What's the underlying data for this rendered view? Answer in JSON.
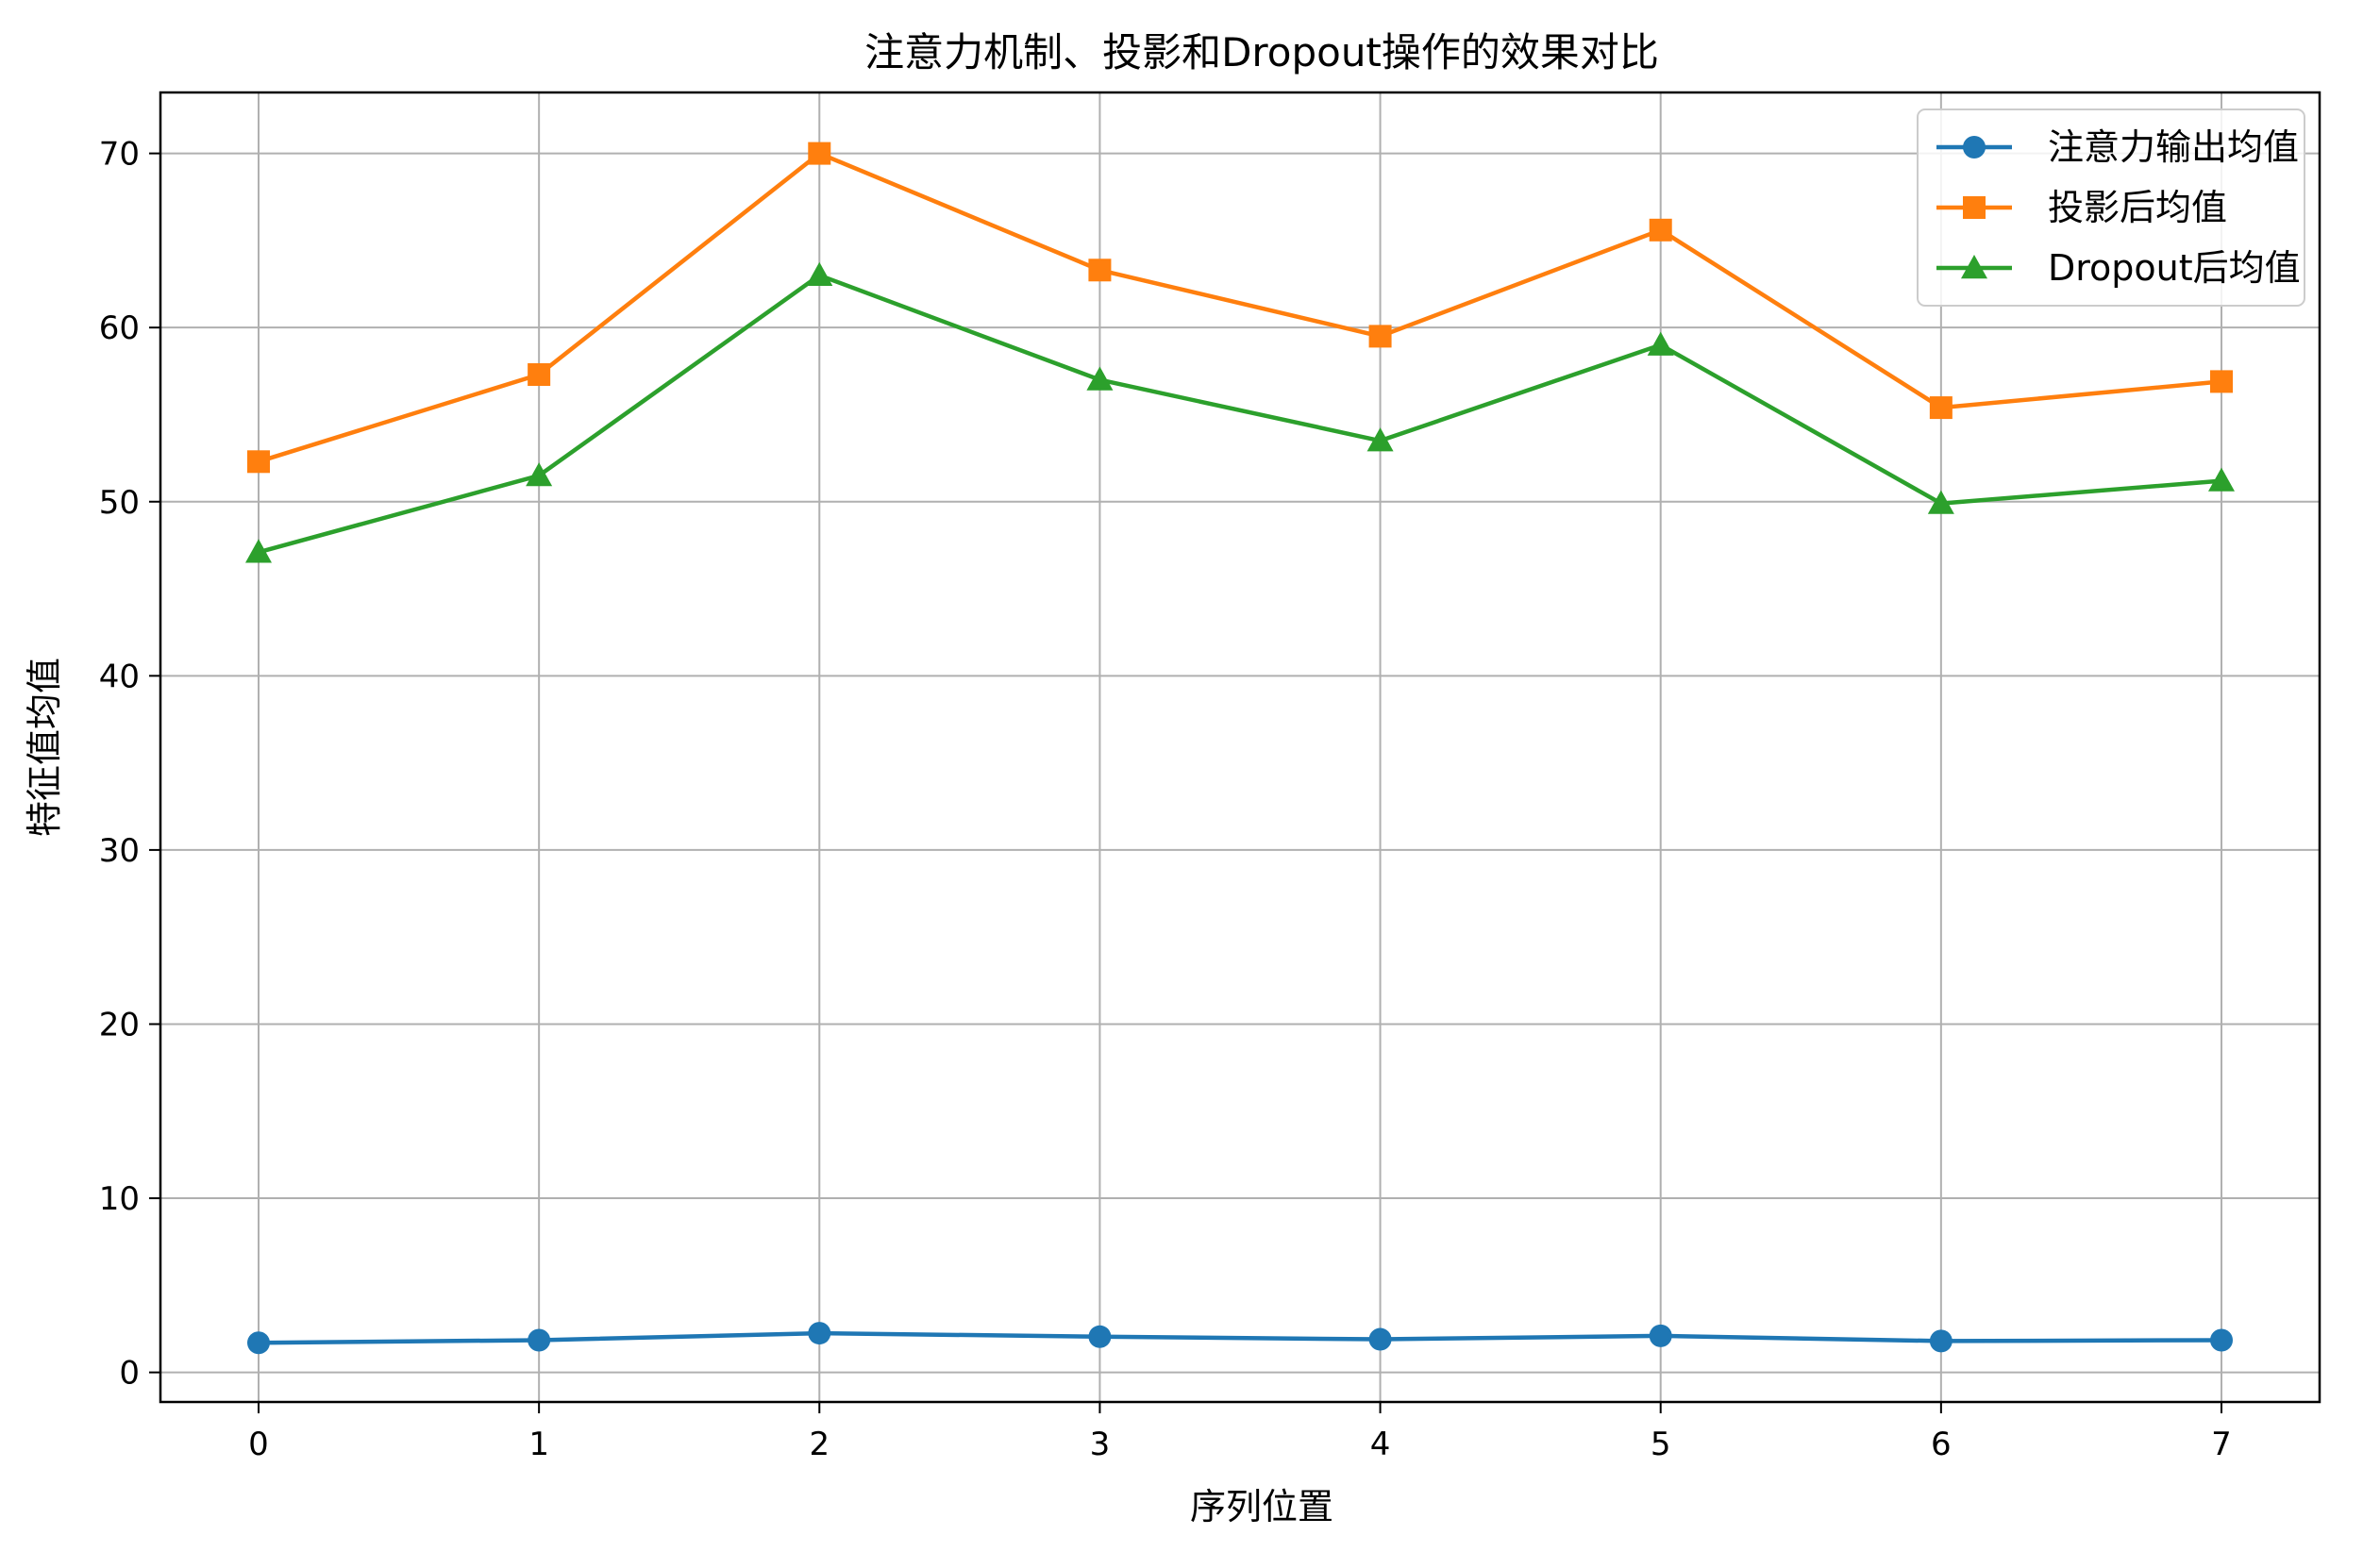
{
  "chart_data": {
    "type": "line",
    "title": "注意力机制、投影和Dropout操作的效果对比",
    "xlabel": "序列位置",
    "ylabel": "特征值均值",
    "x": [
      0,
      1,
      2,
      3,
      4,
      5,
      6,
      7
    ],
    "xlim": [
      -0.35,
      7.35
    ],
    "ylim": [
      -1.7,
      73.5
    ],
    "xticks": [
      "0",
      "1",
      "2",
      "3",
      "4",
      "5",
      "6",
      "7"
    ],
    "yticks": [
      "0",
      "10",
      "20",
      "30",
      "40",
      "50",
      "60",
      "70"
    ],
    "grid": true,
    "legend_position": "top-right",
    "series": [
      {
        "name": "注意力输出均值",
        "color": "#1f77b4",
        "marker": "circle",
        "values": [
          1.7,
          1.85,
          2.25,
          2.05,
          1.9,
          2.1,
          1.8,
          1.85
        ]
      },
      {
        "name": "投影后均值",
        "color": "#ff7f0e",
        "marker": "square",
        "values": [
          52.3,
          57.3,
          70.0,
          63.3,
          59.5,
          65.6,
          55.4,
          56.9
        ]
      },
      {
        "name": "Dropout后均值",
        "color": "#2ca02c",
        "marker": "triangle",
        "values": [
          47.1,
          51.5,
          63.0,
          57.0,
          53.5,
          59.0,
          49.9,
          51.2
        ]
      }
    ]
  }
}
